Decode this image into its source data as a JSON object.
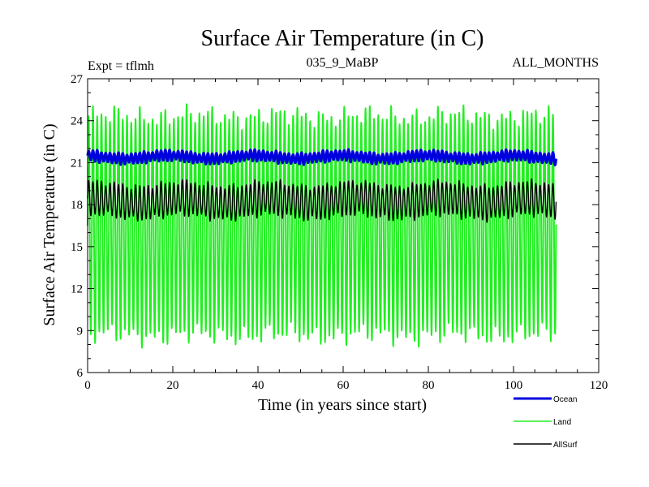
{
  "chart_data": {
    "type": "line",
    "title": "Surface Air Temperature (in C)",
    "subtitle_left": "Expt = tflmh",
    "subtitle_center": "035_9_MaBP",
    "subtitle_right": "ALL_MONTHS",
    "xlabel": "Time (in years since start)",
    "ylabel": "Surface Air Temperature (in C)",
    "xlim": [
      0,
      120
    ],
    "ylim": [
      6,
      27
    ],
    "x_ticks": [
      "0",
      "20",
      "40",
      "60",
      "80",
      "100",
      "120"
    ],
    "y_ticks": [
      "6",
      "9",
      "12",
      "15",
      "18",
      "21",
      "24",
      "27"
    ],
    "x_range_data": [
      0,
      110
    ],
    "cycles_per_year": 1,
    "legend": [
      "Ocean",
      "Land",
      "AllSurf"
    ],
    "series": [
      {
        "name": "Land",
        "color": "#22ee22",
        "mean": 16.5,
        "amplitude_range": [
          7.0,
          8.6
        ],
        "min_approx": 7.3,
        "max_approx": 25.8
      },
      {
        "name": "AllSurf",
        "color": "#000000",
        "mean": 18.3,
        "amplitude_range": [
          0.9,
          1.4
        ],
        "min_approx": 16.9,
        "max_approx": 19.8
      },
      {
        "name": "Ocean",
        "color": "#0000dd",
        "mean": 21.4,
        "amplitude_range": [
          0.25,
          0.45
        ],
        "min_approx": 20.9,
        "max_approx": 22.0
      }
    ]
  }
}
